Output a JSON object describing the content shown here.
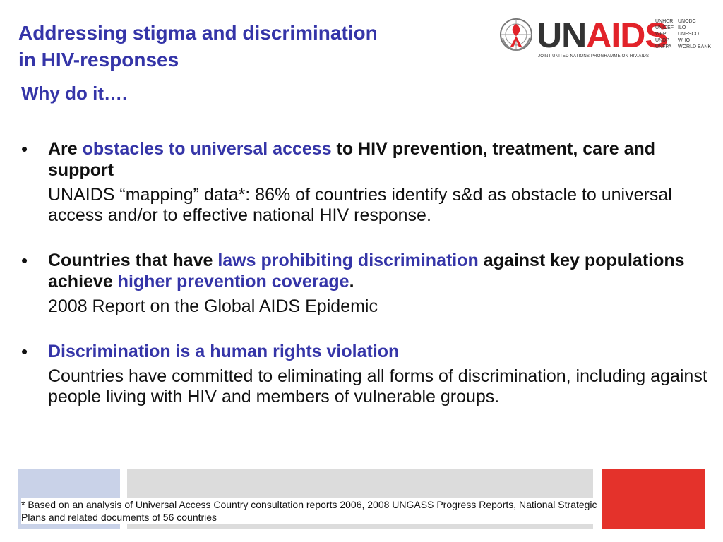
{
  "slide": {
    "title_line1": "Addressing stigma and discrimination",
    "title_line2": "in HIV-responses",
    "subtitle": "Why do it…."
  },
  "logo": {
    "un": "UN",
    "aids": "AIDS",
    "tagline": "JOINT UNITED NATIONS PROGRAMME ON HIV/AIDS",
    "cosponsors_col1": [
      "UNHCR",
      "UNICEF",
      "WFP",
      "UNDP",
      "UNFPA"
    ],
    "cosponsors_col2": [
      "UNODC",
      "ILO",
      "UNESCO",
      "WHO",
      "WORLD BANK"
    ]
  },
  "bullets": [
    {
      "marker": "•",
      "h1": "Are ",
      "h2": "obstacles to universal access",
      "h3": " to HIV prevention, treatment, care and support",
      "h4": "",
      "h5": "",
      "body": "UNAIDS “mapping” data*: 86% of countries identify s&d as obstacle to universal access and/or to effective national HIV response."
    },
    {
      "marker": "•",
      "h1": "Countries that have ",
      "h2": "laws prohibiting discrimination",
      "h3": " against key populations achieve ",
      "h4": "higher prevention coverage",
      "h5": ".",
      "body": "2008 Report on the Global AIDS Epidemic"
    },
    {
      "marker": "•",
      "h1": "",
      "h2": "Discrimination is a human rights violation",
      "h3": "",
      "h4": "",
      "h5": "",
      "body": "Countries have committed to eliminating all forms of discrimination, including against people living with HIV and members of vulnerable groups."
    }
  ],
  "footnote": "* Based on an analysis of Universal Access Country consultation reports 2006, 2008 UNGASS Progress Reports, National Strategic Plans and related documents of 56 countries",
  "colors": {
    "title": "#3535a8",
    "highlight": "#3535a8",
    "brand_red": "#e2232a",
    "band_blue": "#c9d2e8",
    "band_gray": "#dcdcdc",
    "band_red": "#e4322b"
  }
}
